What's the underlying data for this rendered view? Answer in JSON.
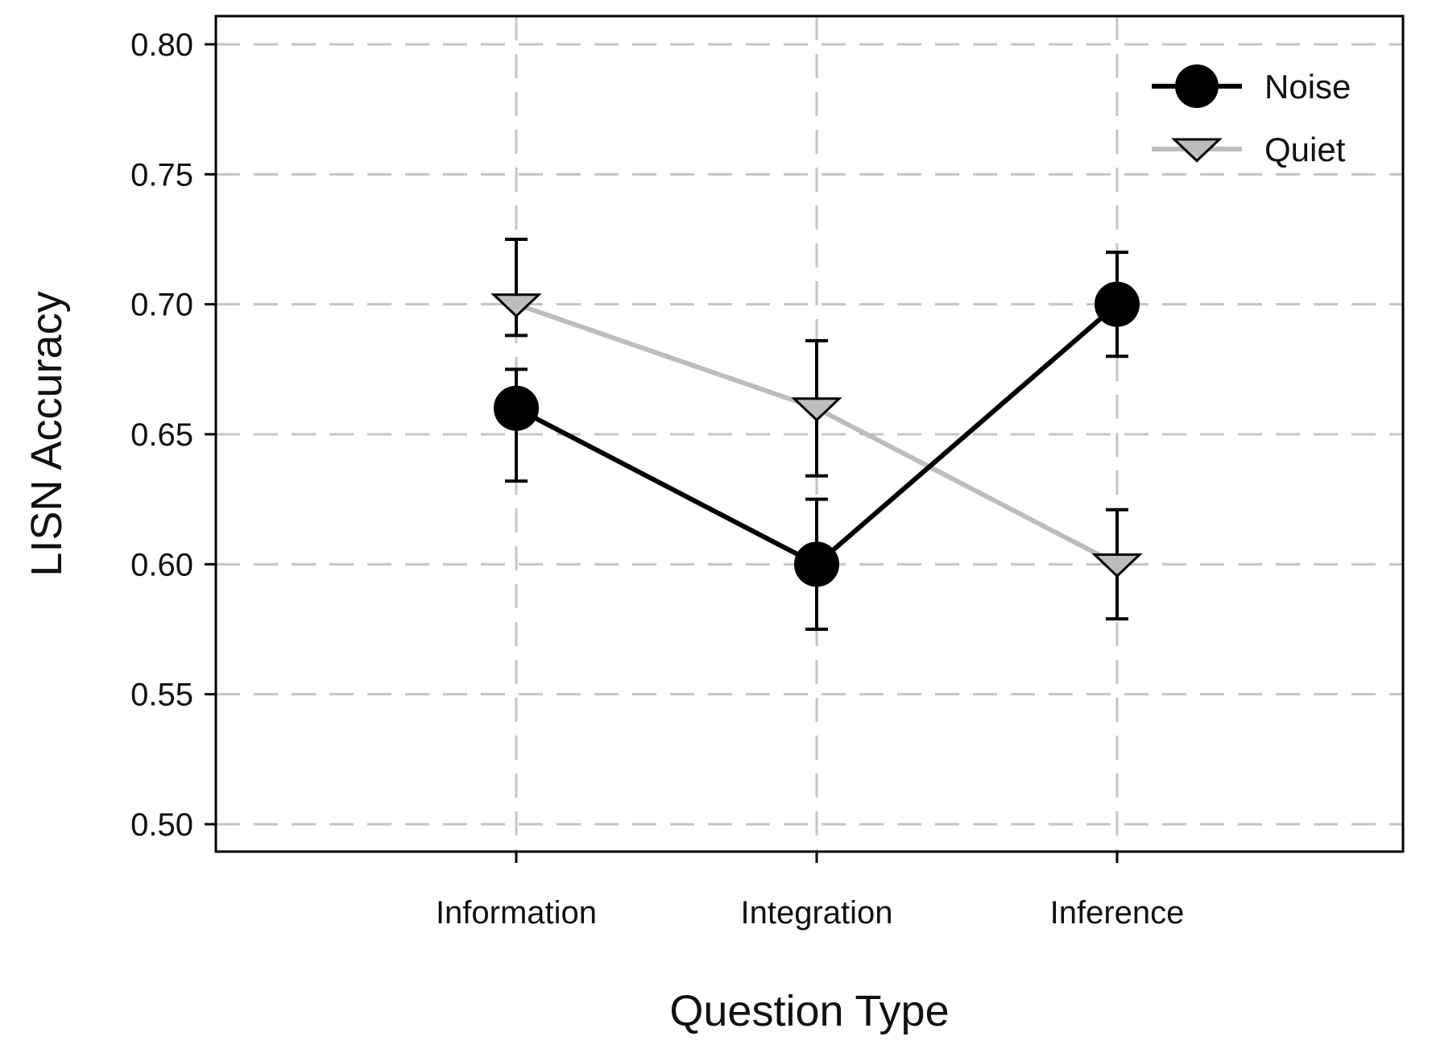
{
  "chart_data": {
    "type": "line",
    "xlabel": "Question Type",
    "ylabel": "LISN Accuracy",
    "categories": [
      "Information",
      "Integration",
      "Inference"
    ],
    "ylim": [
      0.5,
      0.8
    ],
    "yticks": [
      "0.50",
      "0.55",
      "0.60",
      "0.65",
      "0.70",
      "0.75",
      "0.80"
    ],
    "grid": true,
    "legend_position": "top-right",
    "series": [
      {
        "name": "Noise",
        "color": "#000000",
        "marker": "circle",
        "values": [
          0.66,
          0.6,
          0.7
        ],
        "error_low": [
          0.632,
          0.575,
          0.68
        ],
        "error_high": [
          0.675,
          0.625,
          0.72
        ]
      },
      {
        "name": "Quiet",
        "color": "#bdbdbd",
        "marker": "triangle-down",
        "values": [
          0.7,
          0.66,
          0.6
        ],
        "error_low": [
          0.688,
          0.634,
          0.579
        ],
        "error_high": [
          0.725,
          0.686,
          0.621
        ]
      }
    ]
  }
}
